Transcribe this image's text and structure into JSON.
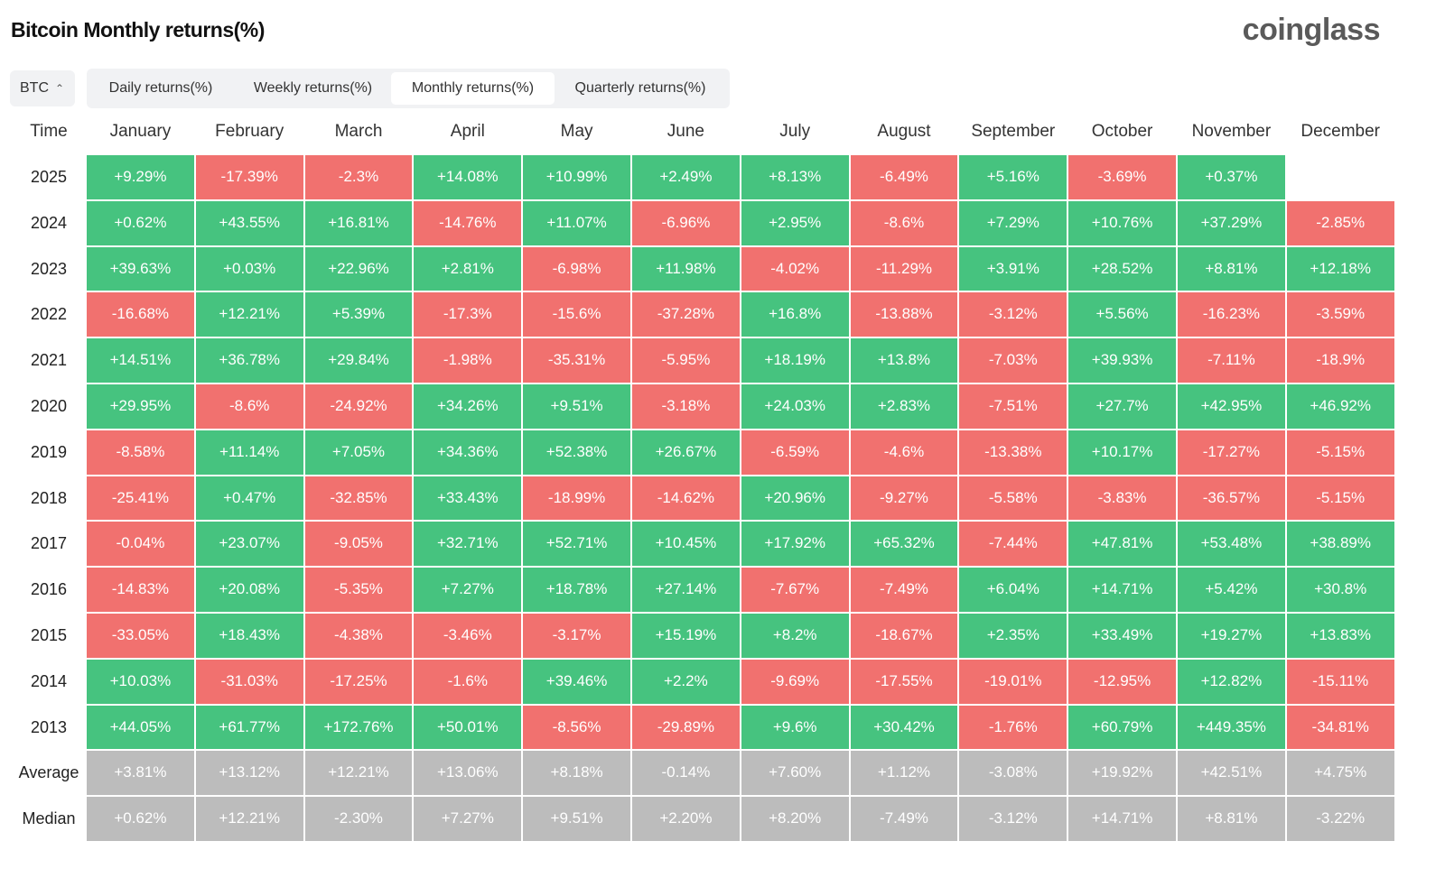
{
  "header": {
    "title": "Bitcoin Monthly returns(%)",
    "logo": "coinglass"
  },
  "selector": {
    "label": "BTC"
  },
  "tabs": [
    "Daily returns(%)",
    "Weekly returns(%)",
    "Monthly returns(%)",
    "Quarterly returns(%)"
  ],
  "active_tab": 2,
  "colors": {
    "positive": "#46c37f",
    "negative": "#f1716f",
    "summary": "#bcbcbc"
  },
  "table": {
    "header": [
      "Time",
      "January",
      "February",
      "March",
      "April",
      "May",
      "June",
      "July",
      "August",
      "September",
      "October",
      "November",
      "December"
    ],
    "rows": [
      {
        "label": "2025",
        "cells": [
          "+9.29%",
          "-17.39%",
          "-2.3%",
          "+14.08%",
          "+10.99%",
          "+2.49%",
          "+8.13%",
          "-6.49%",
          "+5.16%",
          "-3.69%",
          "+0.37%"
        ]
      },
      {
        "label": "2024",
        "cells": [
          "+0.62%",
          "+43.55%",
          "+16.81%",
          "-14.76%",
          "+11.07%",
          "-6.96%",
          "+2.95%",
          "-8.6%",
          "+7.29%",
          "+10.76%",
          "+37.29%",
          "-2.85%"
        ]
      },
      {
        "label": "2023",
        "cells": [
          "+39.63%",
          "+0.03%",
          "+22.96%",
          "+2.81%",
          "-6.98%",
          "+11.98%",
          "-4.02%",
          "-11.29%",
          "+3.91%",
          "+28.52%",
          "+8.81%",
          "+12.18%"
        ]
      },
      {
        "label": "2022",
        "cells": [
          "-16.68%",
          "+12.21%",
          "+5.39%",
          "-17.3%",
          "-15.6%",
          "-37.28%",
          "+16.8%",
          "-13.88%",
          "-3.12%",
          "+5.56%",
          "-16.23%",
          "-3.59%"
        ]
      },
      {
        "label": "2021",
        "cells": [
          "+14.51%",
          "+36.78%",
          "+29.84%",
          "-1.98%",
          "-35.31%",
          "-5.95%",
          "+18.19%",
          "+13.8%",
          "-7.03%",
          "+39.93%",
          "-7.11%",
          "-18.9%"
        ]
      },
      {
        "label": "2020",
        "cells": [
          "+29.95%",
          "-8.6%",
          "-24.92%",
          "+34.26%",
          "+9.51%",
          "-3.18%",
          "+24.03%",
          "+2.83%",
          "-7.51%",
          "+27.7%",
          "+42.95%",
          "+46.92%"
        ]
      },
      {
        "label": "2019",
        "cells": [
          "-8.58%",
          "+11.14%",
          "+7.05%",
          "+34.36%",
          "+52.38%",
          "+26.67%",
          "-6.59%",
          "-4.6%",
          "-13.38%",
          "+10.17%",
          "-17.27%",
          "-5.15%"
        ]
      },
      {
        "label": "2018",
        "cells": [
          "-25.41%",
          "+0.47%",
          "-32.85%",
          "+33.43%",
          "-18.99%",
          "-14.62%",
          "+20.96%",
          "-9.27%",
          "-5.58%",
          "-3.83%",
          "-36.57%",
          "-5.15%"
        ]
      },
      {
        "label": "2017",
        "cells": [
          "-0.04%",
          "+23.07%",
          "-9.05%",
          "+32.71%",
          "+52.71%",
          "+10.45%",
          "+17.92%",
          "+65.32%",
          "-7.44%",
          "+47.81%",
          "+53.48%",
          "+38.89%"
        ]
      },
      {
        "label": "2016",
        "cells": [
          "-14.83%",
          "+20.08%",
          "-5.35%",
          "+7.27%",
          "+18.78%",
          "+27.14%",
          "-7.67%",
          "-7.49%",
          "+6.04%",
          "+14.71%",
          "+5.42%",
          "+30.8%"
        ]
      },
      {
        "label": "2015",
        "cells": [
          "-33.05%",
          "+18.43%",
          "-4.38%",
          "-3.46%",
          "-3.17%",
          "+15.19%",
          "+8.2%",
          "-18.67%",
          "+2.35%",
          "+33.49%",
          "+19.27%",
          "+13.83%"
        ]
      },
      {
        "label": "2014",
        "cells": [
          "+10.03%",
          "-31.03%",
          "-17.25%",
          "-1.6%",
          "+39.46%",
          "+2.2%",
          "-9.69%",
          "-17.55%",
          "-19.01%",
          "-12.95%",
          "+12.82%",
          "-15.11%"
        ]
      },
      {
        "label": "2013",
        "cells": [
          "+44.05%",
          "+61.77%",
          "+172.76%",
          "+50.01%",
          "-8.56%",
          "-29.89%",
          "+9.6%",
          "+30.42%",
          "-1.76%",
          "+60.79%",
          "+449.35%",
          "-34.81%"
        ]
      }
    ],
    "summary_rows": [
      {
        "label": "Average",
        "cells": [
          "+3.81%",
          "+13.12%",
          "+12.21%",
          "+13.06%",
          "+8.18%",
          "-0.14%",
          "+7.60%",
          "+1.12%",
          "-3.08%",
          "+19.92%",
          "+42.51%",
          "+4.75%"
        ]
      },
      {
        "label": "Median",
        "cells": [
          "+0.62%",
          "+12.21%",
          "-2.30%",
          "+7.27%",
          "+9.51%",
          "+2.20%",
          "+8.20%",
          "-7.49%",
          "-3.12%",
          "+14.71%",
          "+8.81%",
          "-3.22%"
        ]
      }
    ]
  }
}
